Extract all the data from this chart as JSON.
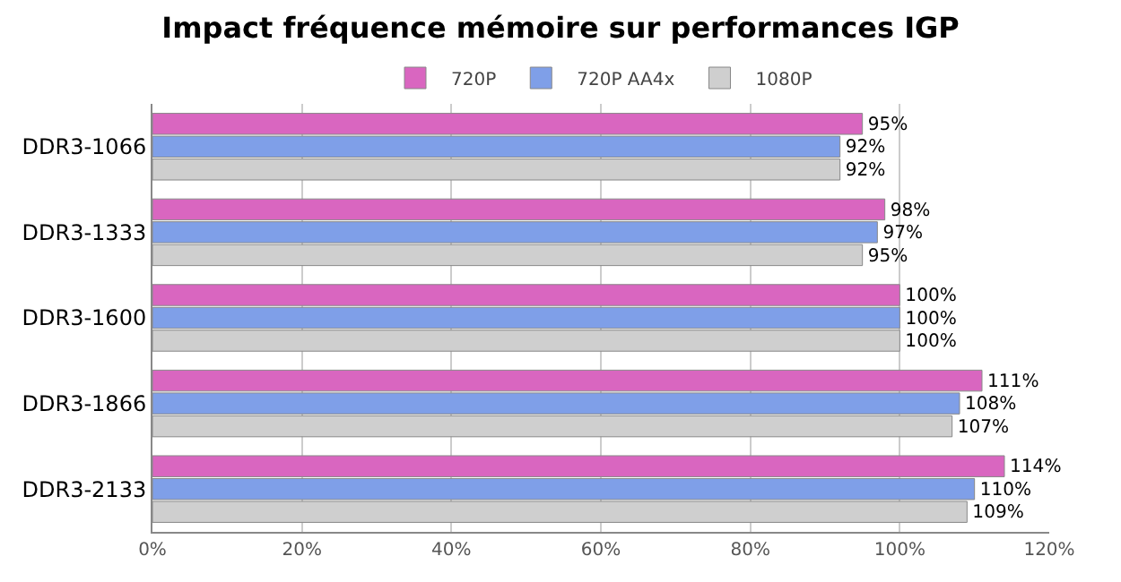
{
  "chart_data": {
    "type": "bar",
    "orientation": "horizontal",
    "title": "Impact fréquence mémoire sur performances IGP",
    "categories": [
      "DDR3-1066",
      "DDR3-1333",
      "DDR3-1600",
      "DDR3-1866",
      "DDR3-2133"
    ],
    "series": [
      {
        "name": "720P",
        "color": "#d966c0",
        "values": [
          95,
          98,
          100,
          111,
          114
        ],
        "value_labels": [
          "95%",
          "98%",
          "100%",
          "111%",
          "114%"
        ]
      },
      {
        "name": "720P AA4x",
        "color": "#7f9fe8",
        "values": [
          92,
          97,
          100,
          108,
          110
        ],
        "value_labels": [
          "92%",
          "97%",
          "100%",
          "108%",
          "110%"
        ]
      },
      {
        "name": "1080P",
        "color": "#cfcfcf",
        "values": [
          92,
          95,
          100,
          107,
          109
        ],
        "value_labels": [
          "92%",
          "95%",
          "100%",
          "107%",
          "109%"
        ]
      }
    ],
    "xlim": [
      0,
      120
    ],
    "xticks": [
      {
        "value": 0,
        "label": "0%"
      },
      {
        "value": 20,
        "label": "20%"
      },
      {
        "value": 40,
        "label": "40%"
      },
      {
        "value": 60,
        "label": "60%"
      },
      {
        "value": 80,
        "label": "80%"
      },
      {
        "value": 100,
        "label": "100%"
      },
      {
        "value": 120,
        "label": "120%"
      }
    ],
    "grid": "x",
    "legend": "top"
  }
}
